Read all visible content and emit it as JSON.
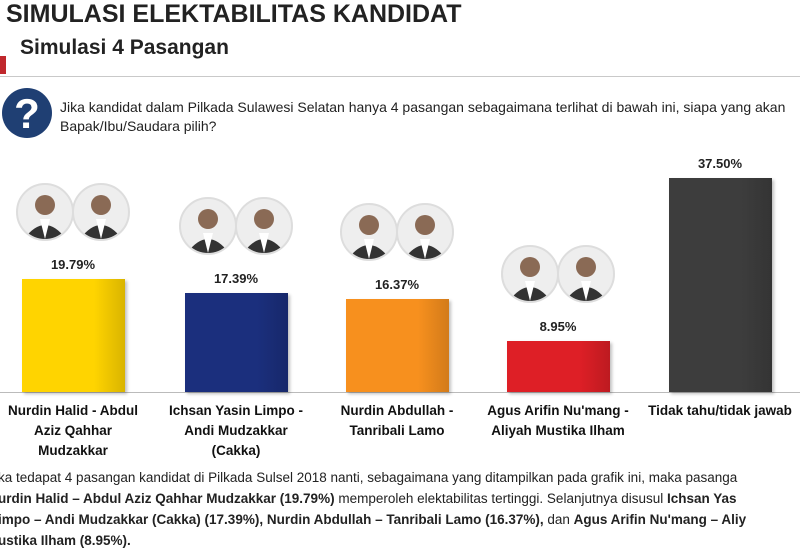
{
  "chart_data": {
    "type": "bar",
    "title": "SIMULASI ELEKTABILITAS KANDIDAT",
    "subtitle": "Simulasi 4 Pasangan",
    "icon": "?",
    "question": "Jika kandidat dalam Pilkada Sulawesi Selatan  hanya 4 pasangan sebagaimana terlihat di bawah ini, siapa yang akan Bapak/Ibu/Saudara pilih?",
    "categories": [
      "Nurdin Halid - Abdul Aziz Qahhar Mudzakkar",
      "Ichsan Yasin Limpo - Andi Mudzakkar (Cakka)",
      "Nurdin Abdullah - Tanribali Lamo",
      "Agus Arifin Nu'mang - Aliyah Mustika Ilham",
      "Tidak tahu/tidak jawab"
    ],
    "values": [
      19.79,
      17.39,
      16.37,
      8.95,
      37.5
    ],
    "value_labels": [
      "19.79%",
      "17.39%",
      "16.37%",
      "8.95%",
      "37.50%"
    ],
    "colors": [
      "#ffd400",
      "#1b2f7d",
      "#f7901e",
      "#de1f26",
      "#3d3d3d"
    ],
    "footnote": [
      [
        {
          "text": "ka tedapat 4 pasangan kandidat di Pilkada Sulsel 2018 nanti, sebagaimana yang ditampilkan pada grafik ini, maka pasanga",
          "bold": false
        }
      ],
      [
        {
          "text": "urdin Halid – Abdul Aziz Qahhar Mudzakkar (19.79%)",
          "bold": true
        },
        {
          "text": " memperoleh elektabilitas tertinggi. Selanjutnya disusul ",
          "bold": false
        },
        {
          "text": "Ichsan Yas",
          "bold": true
        }
      ],
      [
        {
          "text": "impo – Andi Mudzakkar (Cakka) (17.39%), Nurdin Abdullah – Tanribali Lamo (16.37%),",
          "bold": true
        },
        {
          "text": " dan ",
          "bold": false
        },
        {
          "text": "Agus Arifin Nu'mang – Aliy",
          "bold": true
        }
      ],
      [
        {
          "text": "ustika Ilham (8.95%).",
          "bold": true
        }
      ]
    ]
  }
}
